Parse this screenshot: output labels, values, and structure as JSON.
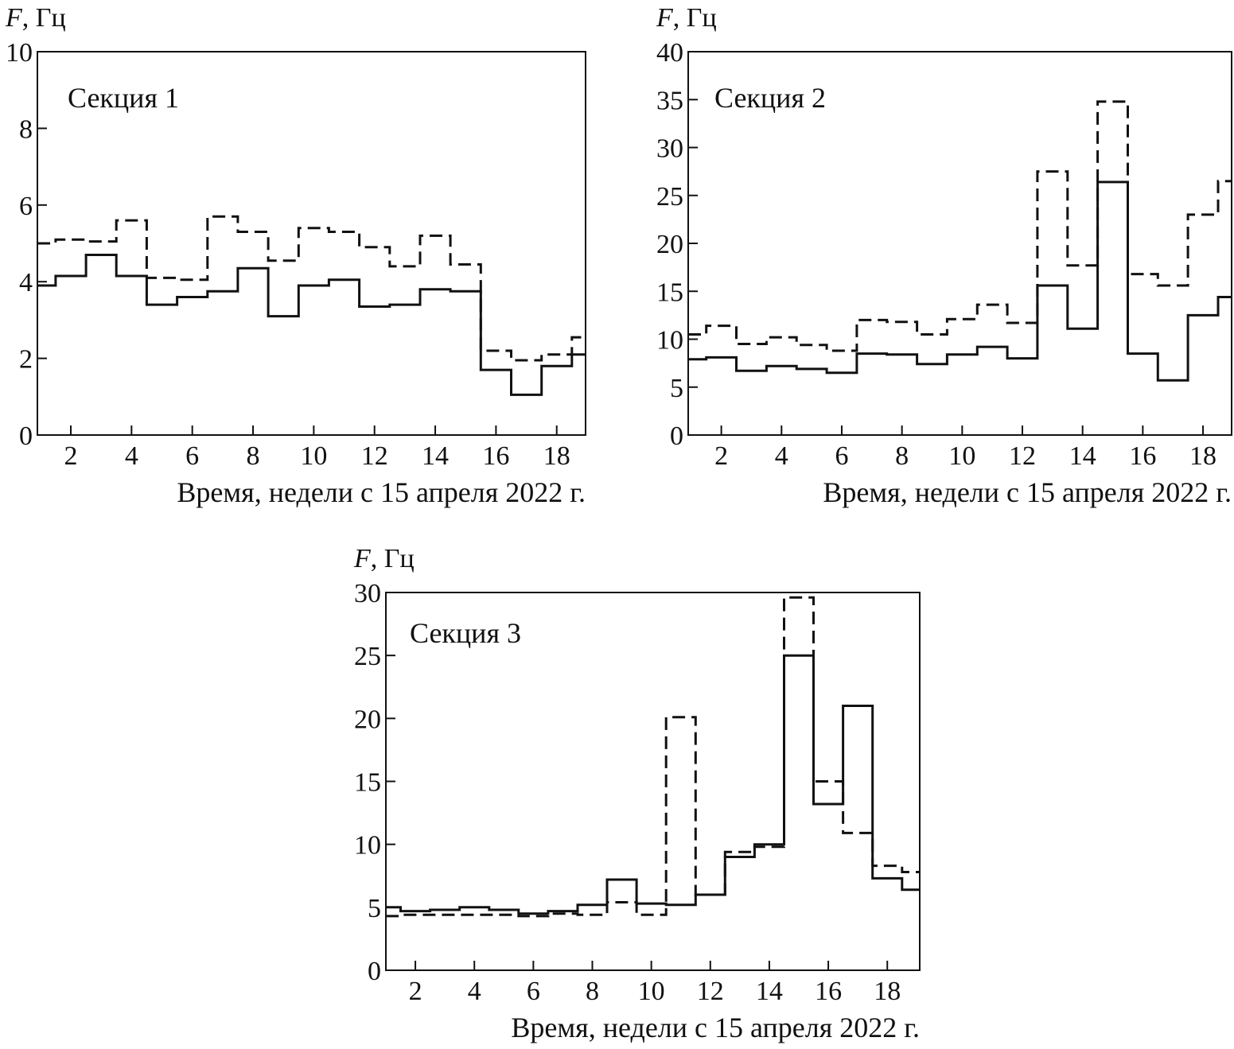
{
  "chart_data": [
    {
      "type": "line",
      "step": true,
      "title": "Секция 1",
      "ylabel_var": "F",
      "ylabel_unit": ", Гц",
      "xlabel": "Время, недели с 15 апреля 2022 г.",
      "xlim": [
        0.9,
        18.95
      ],
      "ylim": [
        0,
        10
      ],
      "xticks": [
        2,
        4,
        6,
        8,
        10,
        12,
        14,
        16,
        18
      ],
      "yticks": [
        0,
        2,
        4,
        6,
        8,
        10
      ],
      "x": [
        1,
        2,
        3,
        4,
        5,
        6,
        7,
        8,
        9,
        10,
        11,
        12,
        13,
        14,
        15,
        16,
        17,
        18,
        19
      ],
      "series": [
        {
          "name": "solid",
          "style": "solid",
          "values": [
            3.9,
            4.15,
            4.7,
            4.15,
            3.4,
            3.6,
            3.75,
            4.35,
            3.1,
            3.9,
            4.05,
            3.35,
            3.4,
            3.8,
            3.75,
            1.7,
            1.05,
            1.8,
            2.1
          ]
        },
        {
          "name": "dashed",
          "style": "dashed",
          "values": [
            5.0,
            5.1,
            5.05,
            5.6,
            4.1,
            4.05,
            5.7,
            5.3,
            4.55,
            5.4,
            5.3,
            4.9,
            4.4,
            5.2,
            4.45,
            2.2,
            1.95,
            2.1,
            2.55
          ]
        }
      ]
    },
    {
      "type": "line",
      "step": true,
      "title": "Секция 2",
      "ylabel_var": "F",
      "ylabel_unit": ", Гц",
      "xlabel": "Время, недели с 15 апреля 2022 г.",
      "xlim": [
        0.9,
        18.95
      ],
      "ylim": [
        0,
        40
      ],
      "xticks": [
        2,
        4,
        6,
        8,
        10,
        12,
        14,
        16,
        18
      ],
      "yticks": [
        0,
        5,
        10,
        15,
        20,
        25,
        30,
        35,
        40
      ],
      "x": [
        1,
        2,
        3,
        4,
        5,
        6,
        7,
        8,
        9,
        10,
        11,
        12,
        13,
        14,
        15,
        16,
        17,
        18,
        19
      ],
      "series": [
        {
          "name": "solid",
          "style": "solid",
          "values": [
            7.9,
            8.1,
            6.7,
            7.2,
            6.9,
            6.5,
            8.5,
            8.4,
            7.4,
            8.4,
            9.2,
            8.0,
            15.6,
            11.1,
            26.4,
            8.5,
            5.7,
            12.5,
            14.4
          ]
        },
        {
          "name": "dashed",
          "style": "dashed",
          "values": [
            10.5,
            11.4,
            9.5,
            10.2,
            9.4,
            8.8,
            12.0,
            11.8,
            10.5,
            12.1,
            13.6,
            11.7,
            27.5,
            17.7,
            34.8,
            16.8,
            15.6,
            23.0,
            26.5
          ]
        }
      ]
    },
    {
      "type": "line",
      "step": true,
      "title": "Секция 3",
      "ylabel_var": "F",
      "ylabel_unit": ", Гц",
      "xlabel": "Время, недели с 15 апреля 2022 г.",
      "xlim": [
        1.0,
        19.1
      ],
      "ylim": [
        0,
        30
      ],
      "xticks": [
        2,
        4,
        6,
        8,
        10,
        12,
        14,
        16,
        18
      ],
      "yticks": [
        0,
        5,
        10,
        15,
        20,
        25,
        30
      ],
      "x": [
        1,
        2,
        3,
        4,
        5,
        6,
        7,
        8,
        9,
        10,
        11,
        12,
        13,
        14,
        15,
        16,
        17,
        18,
        19
      ],
      "series": [
        {
          "name": "solid",
          "style": "solid",
          "values": [
            5.0,
            4.7,
            4.8,
            5.0,
            4.8,
            4.5,
            4.7,
            5.2,
            7.2,
            5.3,
            5.2,
            6.0,
            9.0,
            10.0,
            25.0,
            13.2,
            21.0,
            7.3,
            6.4
          ]
        },
        {
          "name": "dashed",
          "style": "dashed",
          "values": [
            4.3,
            4.4,
            4.4,
            4.4,
            4.4,
            4.3,
            4.5,
            4.4,
            5.4,
            4.4,
            20.1,
            6.0,
            9.4,
            9.8,
            29.6,
            15.0,
            10.9,
            8.3,
            7.8
          ]
        }
      ]
    }
  ]
}
